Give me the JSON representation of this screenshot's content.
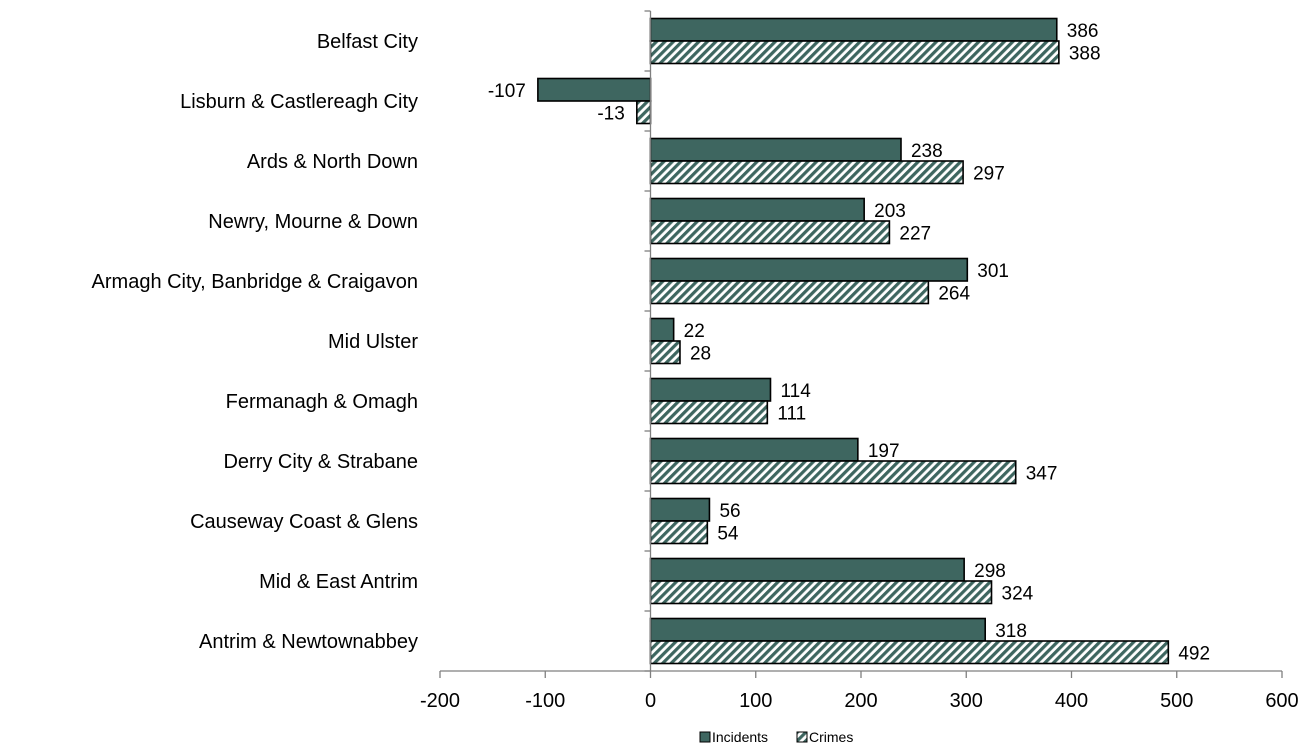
{
  "chart_data": {
    "type": "bar",
    "orientation": "horizontal",
    "categories": [
      "Belfast City",
      "Lisburn & Castlereagh City",
      "Ards & North Down",
      "Newry, Mourne & Down",
      "Armagh City, Banbridge & Craigavon",
      "Mid Ulster",
      "Fermanagh & Omagh",
      "Derry City & Strabane",
      "Causeway Coast & Glens",
      "Mid & East Antrim",
      "Antrim & Newtownabbey"
    ],
    "series": [
      {
        "name": "Incidents",
        "values": [
          386,
          -107,
          238,
          203,
          301,
          22,
          114,
          197,
          56,
          298,
          318
        ],
        "color": "#3e6660",
        "pattern": "solid"
      },
      {
        "name": "Crimes",
        "values": [
          388,
          -13,
          297,
          227,
          264,
          28,
          111,
          347,
          54,
          324,
          492
        ],
        "color": "#3e6660",
        "pattern": "diagonal-stripes"
      }
    ],
    "xlim": [
      -200,
      600
    ],
    "xticks": [
      "-200",
      "-100",
      "0",
      "100",
      "200",
      "300",
      "400",
      "500",
      "600"
    ],
    "data_labels": true,
    "legend_position": "bottom",
    "grid": false
  }
}
